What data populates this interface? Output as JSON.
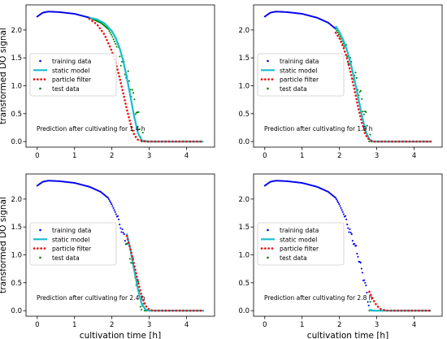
{
  "chart_data": [
    {
      "type": "scatter",
      "xlabel": "",
      "ylabel": "transformed DO signal",
      "xlim": [
        -0.3,
        4.75
      ],
      "ylim": [
        -0.1,
        2.45
      ],
      "xticks": [
        "0",
        "1",
        "2",
        "3",
        "4"
      ],
      "yticks": [
        "0.0",
        "0.5",
        "1.0",
        "1.5",
        "2.0"
      ],
      "annotation": "Prediction after cultivating for 1.4 h",
      "legend_position": "center-left",
      "legend": [
        "training data",
        "static model",
        "particle filter",
        "test data"
      ],
      "series": [
        {
          "name": "training data",
          "x_range": [
            0,
            1.4
          ]
        },
        {
          "name": "static model",
          "x_range": [
            1.4,
            4.45
          ],
          "points": [
            [
              1.4,
              2.22
            ],
            [
              1.6,
              2.19
            ],
            [
              1.8,
              2.12
            ],
            [
              2.0,
              1.98
            ],
            [
              2.1,
              1.86
            ],
            [
              2.2,
              1.69
            ],
            [
              2.3,
              1.46
            ],
            [
              2.4,
              1.15
            ],
            [
              2.5,
              0.8
            ],
            [
              2.6,
              0.44
            ],
            [
              2.7,
              0.15
            ],
            [
              2.8,
              0.02
            ],
            [
              3.0,
              0
            ],
            [
              4.45,
              0
            ]
          ]
        },
        {
          "name": "particle filter",
          "x_range": [
            1.4,
            4.45
          ],
          "points": [
            [
              1.4,
              2.2
            ],
            [
              1.6,
              2.1
            ],
            [
              1.8,
              1.92
            ],
            [
              2.0,
              1.62
            ],
            [
              2.1,
              1.42
            ],
            [
              2.2,
              1.16
            ],
            [
              2.3,
              0.88
            ],
            [
              2.4,
              0.58
            ],
            [
              2.5,
              0.32
            ],
            [
              2.6,
              0.12
            ],
            [
              2.7,
              0.03
            ],
            [
              2.9,
              0
            ],
            [
              4.45,
              0
            ]
          ]
        },
        {
          "name": "test data",
          "x_range": [
            1.4,
            4.45
          ]
        }
      ]
    },
    {
      "type": "scatter",
      "xlabel": "",
      "ylabel": "",
      "xlim": [
        -0.3,
        4.75
      ],
      "ylim": [
        -0.1,
        2.45
      ],
      "xticks": [
        "0",
        "1",
        "2",
        "3",
        "4"
      ],
      "yticks": [
        "0.0",
        "0.5",
        "1.0",
        "1.5",
        "2.0"
      ],
      "annotation": "Prediction after cultivating for 1.9 h",
      "legend_position": "center-left",
      "legend": [
        "training data",
        "static model",
        "particle filter",
        "test data"
      ],
      "series": [
        {
          "name": "training data",
          "x_range": [
            0,
            1.9
          ]
        },
        {
          "name": "static model",
          "x_range": [
            1.9,
            4.45
          ],
          "points": [
            [
              1.9,
              2.07
            ],
            [
              2.0,
              1.96
            ],
            [
              2.1,
              1.82
            ],
            [
              2.2,
              1.64
            ],
            [
              2.3,
              1.41
            ],
            [
              2.4,
              1.12
            ],
            [
              2.5,
              0.8
            ],
            [
              2.6,
              0.47
            ],
            [
              2.7,
              0.19
            ],
            [
              2.8,
              0.04
            ],
            [
              2.9,
              0
            ],
            [
              4.45,
              0
            ]
          ]
        },
        {
          "name": "particle filter",
          "x_range": [
            1.9,
            4.45
          ],
          "points": [
            [
              1.9,
              1.95
            ],
            [
              2.0,
              1.85
            ],
            [
              2.1,
              1.7
            ],
            [
              2.2,
              1.5
            ],
            [
              2.3,
              1.24
            ],
            [
              2.4,
              0.94
            ],
            [
              2.5,
              0.62
            ],
            [
              2.6,
              0.34
            ],
            [
              2.7,
              0.12
            ],
            [
              2.8,
              0.03
            ],
            [
              2.9,
              0
            ],
            [
              4.45,
              0
            ]
          ]
        },
        {
          "name": "test data",
          "x_range": [
            1.9,
            4.45
          ]
        }
      ]
    },
    {
      "type": "scatter",
      "xlabel": "cultivation time [h]",
      "ylabel": "transformed DO signal",
      "xlim": [
        -0.3,
        4.75
      ],
      "ylim": [
        -0.1,
        2.45
      ],
      "xticks": [
        "0",
        "1",
        "2",
        "3",
        "4"
      ],
      "yticks": [
        "0.0",
        "0.5",
        "1.0",
        "1.5",
        "2.0"
      ],
      "annotation": "Prediction after cultivating for 2.4 h",
      "legend_position": "center-left",
      "legend": [
        "training data",
        "static model",
        "particle filter",
        "test data"
      ],
      "series": [
        {
          "name": "training data",
          "x_range": [
            0,
            2.4
          ]
        },
        {
          "name": "static model",
          "x_range": [
            2.4,
            4.45
          ],
          "points": [
            [
              2.4,
              1.38
            ],
            [
              2.5,
              1.08
            ],
            [
              2.6,
              0.72
            ],
            [
              2.7,
              0.38
            ],
            [
              2.8,
              0.12
            ],
            [
              2.9,
              0.02
            ],
            [
              3.0,
              0
            ],
            [
              4.45,
              0
            ]
          ]
        },
        {
          "name": "particle filter",
          "x_range": [
            2.4,
            4.45
          ],
          "points": [
            [
              2.4,
              1.34
            ],
            [
              2.5,
              1.1
            ],
            [
              2.6,
              0.82
            ],
            [
              2.7,
              0.52
            ],
            [
              2.8,
              0.26
            ],
            [
              2.9,
              0.09
            ],
            [
              3.0,
              0.02
            ],
            [
              3.1,
              0
            ],
            [
              4.45,
              0
            ]
          ]
        },
        {
          "name": "test data",
          "x_range": [
            2.4,
            4.45
          ]
        }
      ]
    },
    {
      "type": "scatter",
      "xlabel": "cultivation time [h]",
      "ylabel": "",
      "xlim": [
        -0.3,
        4.75
      ],
      "ylim": [
        -0.1,
        2.45
      ],
      "xticks": [
        "0",
        "1",
        "2",
        "3",
        "4"
      ],
      "yticks": [
        "0.0",
        "0.5",
        "1.0",
        "1.5",
        "2.0"
      ],
      "annotation": "Prediction after cultivating for 2.8 h",
      "legend_position": "center-left",
      "legend": [
        "training data",
        "static model",
        "particle filter",
        "test data"
      ],
      "series": [
        {
          "name": "training data",
          "x_range": [
            0,
            2.8
          ]
        },
        {
          "name": "static model",
          "x_range": [
            2.8,
            4.45
          ],
          "points": [
            [
              2.8,
              0.02
            ],
            [
              2.85,
              0.01
            ],
            [
              2.9,
              0
            ],
            [
              4.45,
              0
            ]
          ]
        },
        {
          "name": "particle filter",
          "x_range": [
            2.8,
            4.45
          ],
          "points": [
            [
              2.8,
              0.34
            ],
            [
              2.9,
              0.2
            ],
            [
              3.0,
              0.09
            ],
            [
              3.1,
              0.03
            ],
            [
              3.2,
              0.01
            ],
            [
              3.3,
              0
            ],
            [
              4.45,
              0
            ]
          ]
        },
        {
          "name": "test data",
          "x_range": [
            2.8,
            4.45
          ]
        }
      ]
    }
  ],
  "colors": {
    "training": "#0000ee",
    "static": "#17becf",
    "particle": "#ee1111",
    "test": "#008000"
  }
}
